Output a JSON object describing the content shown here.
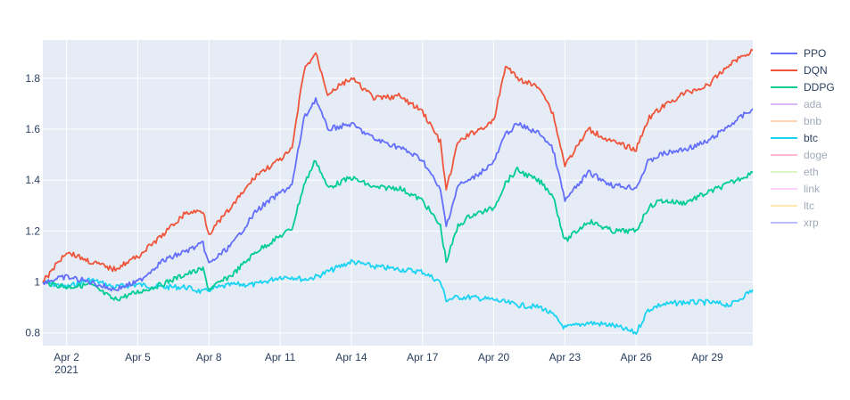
{
  "chart_data": {
    "type": "line",
    "x_axis": {
      "type": "date",
      "range": [
        "2021-04-01T00:00",
        "2021-04-30T22:00"
      ],
      "ticks": [
        {
          "date": "2021-04-02",
          "label": "Apr 2",
          "sublabel": "2021"
        },
        {
          "date": "2021-04-05",
          "label": "Apr 5"
        },
        {
          "date": "2021-04-08",
          "label": "Apr 8"
        },
        {
          "date": "2021-04-11",
          "label": "Apr 11"
        },
        {
          "date": "2021-04-14",
          "label": "Apr 14"
        },
        {
          "date": "2021-04-17",
          "label": "Apr 17"
        },
        {
          "date": "2021-04-20",
          "label": "Apr 20"
        },
        {
          "date": "2021-04-23",
          "label": "Apr 23"
        },
        {
          "date": "2021-04-26",
          "label": "Apr 26"
        },
        {
          "date": "2021-04-29",
          "label": "Apr 29"
        }
      ]
    },
    "y_axis": {
      "range": [
        0.75,
        1.95
      ],
      "ticks": [
        0.8,
        1,
        1.2,
        1.4,
        1.6,
        1.8
      ],
      "tick_labels": [
        "0.8",
        "1",
        "1.2",
        "1.4",
        "1.6",
        "1.8"
      ]
    },
    "grid": true,
    "plot_background": "#e5ecf6",
    "legend_position": "right",
    "series": [
      {
        "name": "PPO",
        "color": "#636efa",
        "visible": true,
        "points": [
          [
            "2021-04-01",
            1.0
          ],
          [
            "2021-04-02",
            1.02
          ],
          [
            "2021-04-03",
            1.0
          ],
          [
            "2021-04-04",
            0.97
          ],
          [
            "2021-04-05",
            1.0
          ],
          [
            "2021-04-06",
            1.08
          ],
          [
            "2021-04-07",
            1.12
          ],
          [
            "2021-04-07T18:00",
            1.15
          ],
          [
            "2021-04-08",
            1.07
          ],
          [
            "2021-04-09",
            1.15
          ],
          [
            "2021-04-10",
            1.28
          ],
          [
            "2021-04-11",
            1.35
          ],
          [
            "2021-04-11T12:00",
            1.38
          ],
          [
            "2021-04-12",
            1.64
          ],
          [
            "2021-04-12T12:00",
            1.72
          ],
          [
            "2021-04-13",
            1.6
          ],
          [
            "2021-04-14",
            1.62
          ],
          [
            "2021-04-15",
            1.56
          ],
          [
            "2021-04-16",
            1.53
          ],
          [
            "2021-04-17",
            1.48
          ],
          [
            "2021-04-17T18:00",
            1.36
          ],
          [
            "2021-04-18",
            1.22
          ],
          [
            "2021-04-18T12:00",
            1.38
          ],
          [
            "2021-04-19",
            1.4
          ],
          [
            "2021-04-20",
            1.47
          ],
          [
            "2021-04-20T12:00",
            1.58
          ],
          [
            "2021-04-21",
            1.62
          ],
          [
            "2021-04-22",
            1.58
          ],
          [
            "2021-04-22T12:00",
            1.52
          ],
          [
            "2021-04-23",
            1.32
          ],
          [
            "2021-04-24",
            1.43
          ],
          [
            "2021-04-25",
            1.38
          ],
          [
            "2021-04-26",
            1.37
          ],
          [
            "2021-04-26T12:00",
            1.47
          ],
          [
            "2021-04-27",
            1.5
          ],
          [
            "2021-04-28",
            1.52
          ],
          [
            "2021-04-29",
            1.55
          ],
          [
            "2021-04-30",
            1.62
          ],
          [
            "2021-04-30T22:00",
            1.68
          ]
        ]
      },
      {
        "name": "DQN",
        "color": "#ef553b",
        "visible": true,
        "points": [
          [
            "2021-04-01",
            1.0
          ],
          [
            "2021-04-02",
            1.12
          ],
          [
            "2021-04-03",
            1.08
          ],
          [
            "2021-04-04",
            1.05
          ],
          [
            "2021-04-05",
            1.1
          ],
          [
            "2021-04-06",
            1.18
          ],
          [
            "2021-04-07",
            1.27
          ],
          [
            "2021-04-07T18:00",
            1.28
          ],
          [
            "2021-04-08",
            1.19
          ],
          [
            "2021-04-09",
            1.3
          ],
          [
            "2021-04-10",
            1.42
          ],
          [
            "2021-04-11",
            1.48
          ],
          [
            "2021-04-11T12:00",
            1.52
          ],
          [
            "2021-04-12",
            1.83
          ],
          [
            "2021-04-12T12:00",
            1.9
          ],
          [
            "2021-04-13",
            1.74
          ],
          [
            "2021-04-14",
            1.8
          ],
          [
            "2021-04-15",
            1.72
          ],
          [
            "2021-04-16",
            1.73
          ],
          [
            "2021-04-17",
            1.67
          ],
          [
            "2021-04-17T18:00",
            1.55
          ],
          [
            "2021-04-18",
            1.36
          ],
          [
            "2021-04-18T12:00",
            1.55
          ],
          [
            "2021-04-19",
            1.58
          ],
          [
            "2021-04-20",
            1.63
          ],
          [
            "2021-04-20T12:00",
            1.85
          ],
          [
            "2021-04-21",
            1.8
          ],
          [
            "2021-04-22",
            1.76
          ],
          [
            "2021-04-22T12:00",
            1.66
          ],
          [
            "2021-04-23",
            1.46
          ],
          [
            "2021-04-24",
            1.6
          ],
          [
            "2021-04-25",
            1.55
          ],
          [
            "2021-04-26",
            1.52
          ],
          [
            "2021-04-26T12:00",
            1.64
          ],
          [
            "2021-04-27",
            1.68
          ],
          [
            "2021-04-28",
            1.74
          ],
          [
            "2021-04-29",
            1.77
          ],
          [
            "2021-04-30",
            1.86
          ],
          [
            "2021-04-30T22:00",
            1.91
          ]
        ]
      },
      {
        "name": "DDPG",
        "color": "#00cc96",
        "visible": true,
        "points": [
          [
            "2021-04-01",
            1.0
          ],
          [
            "2021-04-02",
            0.98
          ],
          [
            "2021-04-03",
            0.99
          ],
          [
            "2021-04-04",
            0.93
          ],
          [
            "2021-04-05",
            0.96
          ],
          [
            "2021-04-06",
            0.99
          ],
          [
            "2021-04-07",
            1.03
          ],
          [
            "2021-04-07T18:00",
            1.05
          ],
          [
            "2021-04-08",
            0.97
          ],
          [
            "2021-04-09",
            1.03
          ],
          [
            "2021-04-10",
            1.12
          ],
          [
            "2021-04-11",
            1.18
          ],
          [
            "2021-04-11T12:00",
            1.21
          ],
          [
            "2021-04-12",
            1.38
          ],
          [
            "2021-04-12T12:00",
            1.48
          ],
          [
            "2021-04-13",
            1.37
          ],
          [
            "2021-04-14",
            1.41
          ],
          [
            "2021-04-15",
            1.37
          ],
          [
            "2021-04-16",
            1.37
          ],
          [
            "2021-04-17",
            1.32
          ],
          [
            "2021-04-17T18:00",
            1.22
          ],
          [
            "2021-04-18",
            1.08
          ],
          [
            "2021-04-18T12:00",
            1.22
          ],
          [
            "2021-04-19",
            1.26
          ],
          [
            "2021-04-20",
            1.29
          ],
          [
            "2021-04-20T12:00",
            1.39
          ],
          [
            "2021-04-21",
            1.44
          ],
          [
            "2021-04-22",
            1.39
          ],
          [
            "2021-04-22T12:00",
            1.34
          ],
          [
            "2021-04-23",
            1.16
          ],
          [
            "2021-04-24",
            1.24
          ],
          [
            "2021-04-25",
            1.2
          ],
          [
            "2021-04-26",
            1.2
          ],
          [
            "2021-04-26T12:00",
            1.29
          ],
          [
            "2021-04-27",
            1.32
          ],
          [
            "2021-04-28",
            1.31
          ],
          [
            "2021-04-29",
            1.35
          ],
          [
            "2021-04-30",
            1.39
          ],
          [
            "2021-04-30T22:00",
            1.43
          ]
        ]
      },
      {
        "name": "ada",
        "color": "#ab63fa",
        "visible": false,
        "points": []
      },
      {
        "name": "bnb",
        "color": "#ffa15a",
        "visible": false,
        "points": []
      },
      {
        "name": "btc",
        "color": "#19d3f3",
        "visible": true,
        "points": [
          [
            "2021-04-01",
            1.0
          ],
          [
            "2021-04-02",
            0.98
          ],
          [
            "2021-04-03",
            1.01
          ],
          [
            "2021-04-04",
            0.98
          ],
          [
            "2021-04-05",
            0.99
          ],
          [
            "2021-04-06",
            0.98
          ],
          [
            "2021-04-07",
            0.98
          ],
          [
            "2021-04-07T18:00",
            0.96
          ],
          [
            "2021-04-08",
            0.97
          ],
          [
            "2021-04-09",
            0.99
          ],
          [
            "2021-04-10",
            0.99
          ],
          [
            "2021-04-11",
            1.02
          ],
          [
            "2021-04-11T12:00",
            1.02
          ],
          [
            "2021-04-12",
            1.01
          ],
          [
            "2021-04-12T12:00",
            1.02
          ],
          [
            "2021-04-13",
            1.04
          ],
          [
            "2021-04-14",
            1.08
          ],
          [
            "2021-04-15",
            1.06
          ],
          [
            "2021-04-16",
            1.05
          ],
          [
            "2021-04-17",
            1.04
          ],
          [
            "2021-04-17T18:00",
            1.0
          ],
          [
            "2021-04-18",
            0.93
          ],
          [
            "2021-04-18T12:00",
            0.94
          ],
          [
            "2021-04-19",
            0.94
          ],
          [
            "2021-04-20",
            0.93
          ],
          [
            "2021-04-20T12:00",
            0.92
          ],
          [
            "2021-04-21",
            0.91
          ],
          [
            "2021-04-22",
            0.9
          ],
          [
            "2021-04-22T12:00",
            0.87
          ],
          [
            "2021-04-23",
            0.82
          ],
          [
            "2021-04-24",
            0.84
          ],
          [
            "2021-04-25",
            0.83
          ],
          [
            "2021-04-26",
            0.8
          ],
          [
            "2021-04-26T12:00",
            0.89
          ],
          [
            "2021-04-27",
            0.91
          ],
          [
            "2021-04-28",
            0.92
          ],
          [
            "2021-04-29",
            0.92
          ],
          [
            "2021-04-30",
            0.91
          ],
          [
            "2021-04-30T22:00",
            0.97
          ]
        ]
      },
      {
        "name": "doge",
        "color": "#ff6692",
        "visible": false,
        "points": []
      },
      {
        "name": "eth",
        "color": "#b6e880",
        "visible": false,
        "points": []
      },
      {
        "name": "link",
        "color": "#ff97ff",
        "visible": false,
        "points": []
      },
      {
        "name": "ltc",
        "color": "#fecb52",
        "visible": false,
        "points": []
      },
      {
        "name": "xrp",
        "color": "#636efa",
        "visible": false,
        "points": []
      }
    ]
  }
}
